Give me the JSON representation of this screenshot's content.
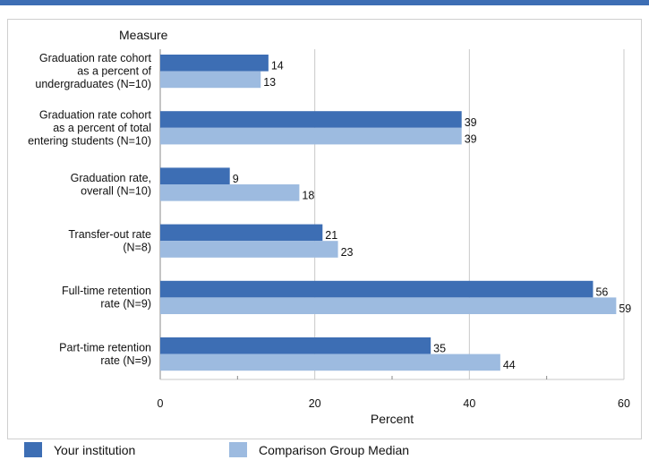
{
  "chart_data": {
    "type": "bar",
    "orientation": "horizontal",
    "category_header": "Measure",
    "categories": [
      [
        "Graduation rate cohort",
        "as a percent of",
        "undergraduates (N=10)"
      ],
      [
        "Graduation rate cohort",
        "as a percent of total",
        "entering students (N=10)"
      ],
      [
        "Graduation rate,",
        "overall (N=10)"
      ],
      [
        "Transfer-out rate",
        "(N=8)"
      ],
      [
        "Full-time retention",
        "rate (N=9)"
      ],
      [
        "Part-time retention",
        "rate (N=9)"
      ]
    ],
    "series": [
      {
        "name": "Your institution",
        "color": "#3d6eb4",
        "values": [
          14,
          39,
          9,
          21,
          56,
          35
        ]
      },
      {
        "name": "Comparison Group Median",
        "color": "#9dbbe0",
        "values": [
          13,
          39,
          18,
          23,
          59,
          44
        ]
      }
    ],
    "xlabel": "Percent",
    "xlim": [
      0,
      60
    ],
    "xticks": [
      0,
      20,
      40,
      60
    ],
    "grid": true,
    "legend_position": "bottom"
  },
  "colors": {
    "accent": "#3d6eb4",
    "grid": "#c8c8c8"
  }
}
